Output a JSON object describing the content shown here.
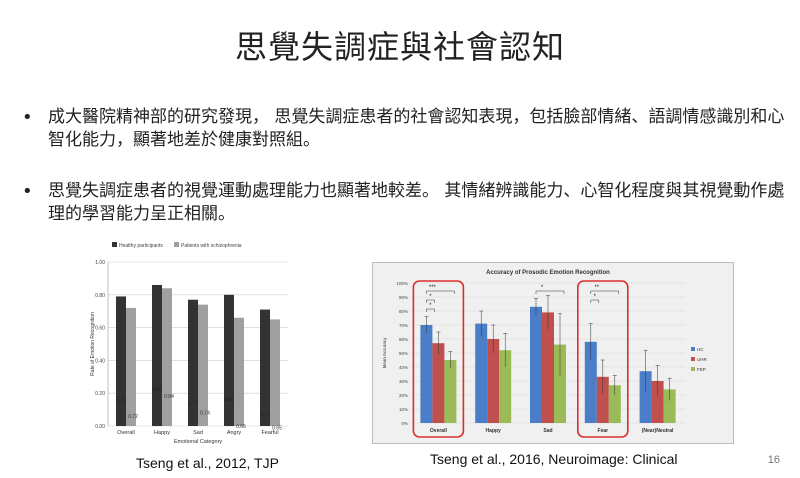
{
  "slide": {
    "title": "思覺失調症與社會認知",
    "bullets": [
      "成大醫院精神部的研究發現， 思覺失調症患者的社會認知表現，包括臉部情緒、語調情感識別和心智化能力，顯著地差於健康對照組。",
      "思覺失調症患者的視覺運動處理能力也顯著地較差。 其情緒辨識能力、心智化程度與其視覺動作處理的學習能力呈正相關。"
    ],
    "bullet_glyph": "•",
    "citation_left": "Tseng et al., 2012, TJP",
    "citation_right": "Tseng et al., 2016, Neuroimage: Clinical",
    "page_number": "16"
  },
  "chart_data": [
    {
      "type": "bar",
      "title": "",
      "xlabel": "Emotional Category",
      "ylabel": "Rate of Emotion Recognition",
      "categories": [
        "Overall",
        "Happy",
        "Sad",
        "Angry",
        "Fearful"
      ],
      "ylim": [
        0,
        1
      ],
      "yticks": [
        "0.00",
        "0.20",
        "0.40",
        "0.60",
        "0.80",
        "1.00"
      ],
      "legend_position": "top",
      "grid": true,
      "series": [
        {
          "name": "Healthy participants",
          "color": "#333333",
          "values": [
            0.79,
            0.86,
            0.77,
            0.8,
            0.71
          ],
          "labels": [
            "0.79",
            "0.86",
            "0.77",
            "0.80",
            "0.71"
          ]
        },
        {
          "name": "Patients with schizophrenia",
          "color": "#a0a0a0",
          "values": [
            0.72,
            0.84,
            0.74,
            0.66,
            0.65
          ],
          "labels": [
            "0.72",
            "0.84",
            "0.74",
            "0.66",
            "0.65"
          ]
        }
      ]
    },
    {
      "type": "bar",
      "title": "Accuracy of Prosodic Emotion Recognition",
      "xlabel": "",
      "ylabel": "Mean Accuracy",
      "categories": [
        "Overall",
        "Happy",
        "Sad",
        "Fear",
        "(Near)Neutral"
      ],
      "ylim": [
        0,
        1
      ],
      "yticks": [
        "0%",
        "10%",
        "20%",
        "30%",
        "40%",
        "50%",
        "60%",
        "70%",
        "80%",
        "90%",
        "100%"
      ],
      "legend_position": "right",
      "grid": true,
      "series": [
        {
          "name": "HC",
          "color": "#4a7ec9",
          "values": [
            0.7,
            0.71,
            0.83,
            0.58,
            0.37
          ],
          "errors": [
            0.06,
            0.09,
            0.06,
            0.13,
            0.15
          ]
        },
        {
          "name": "UHR",
          "color": "#c0504d",
          "values": [
            0.57,
            0.6,
            0.79,
            0.33,
            0.3
          ],
          "errors": [
            0.08,
            0.1,
            0.12,
            0.12,
            0.11
          ]
        },
        {
          "name": "FEP",
          "color": "#9bbb59",
          "values": [
            0.45,
            0.52,
            0.56,
            0.27,
            0.24
          ],
          "errors": [
            0.06,
            0.12,
            0.22,
            0.07,
            0.08
          ]
        }
      ],
      "annotations": [
        {
          "category": "Overall",
          "labels": [
            "***",
            "*",
            "*"
          ]
        },
        {
          "category": "Sad",
          "labels": [
            "*"
          ]
        },
        {
          "category": "Fear",
          "labels": [
            "**",
            "*"
          ]
        }
      ],
      "highlighted_categories": [
        "Overall",
        "Fear"
      ],
      "highlight_color": "#d9302c"
    }
  ]
}
